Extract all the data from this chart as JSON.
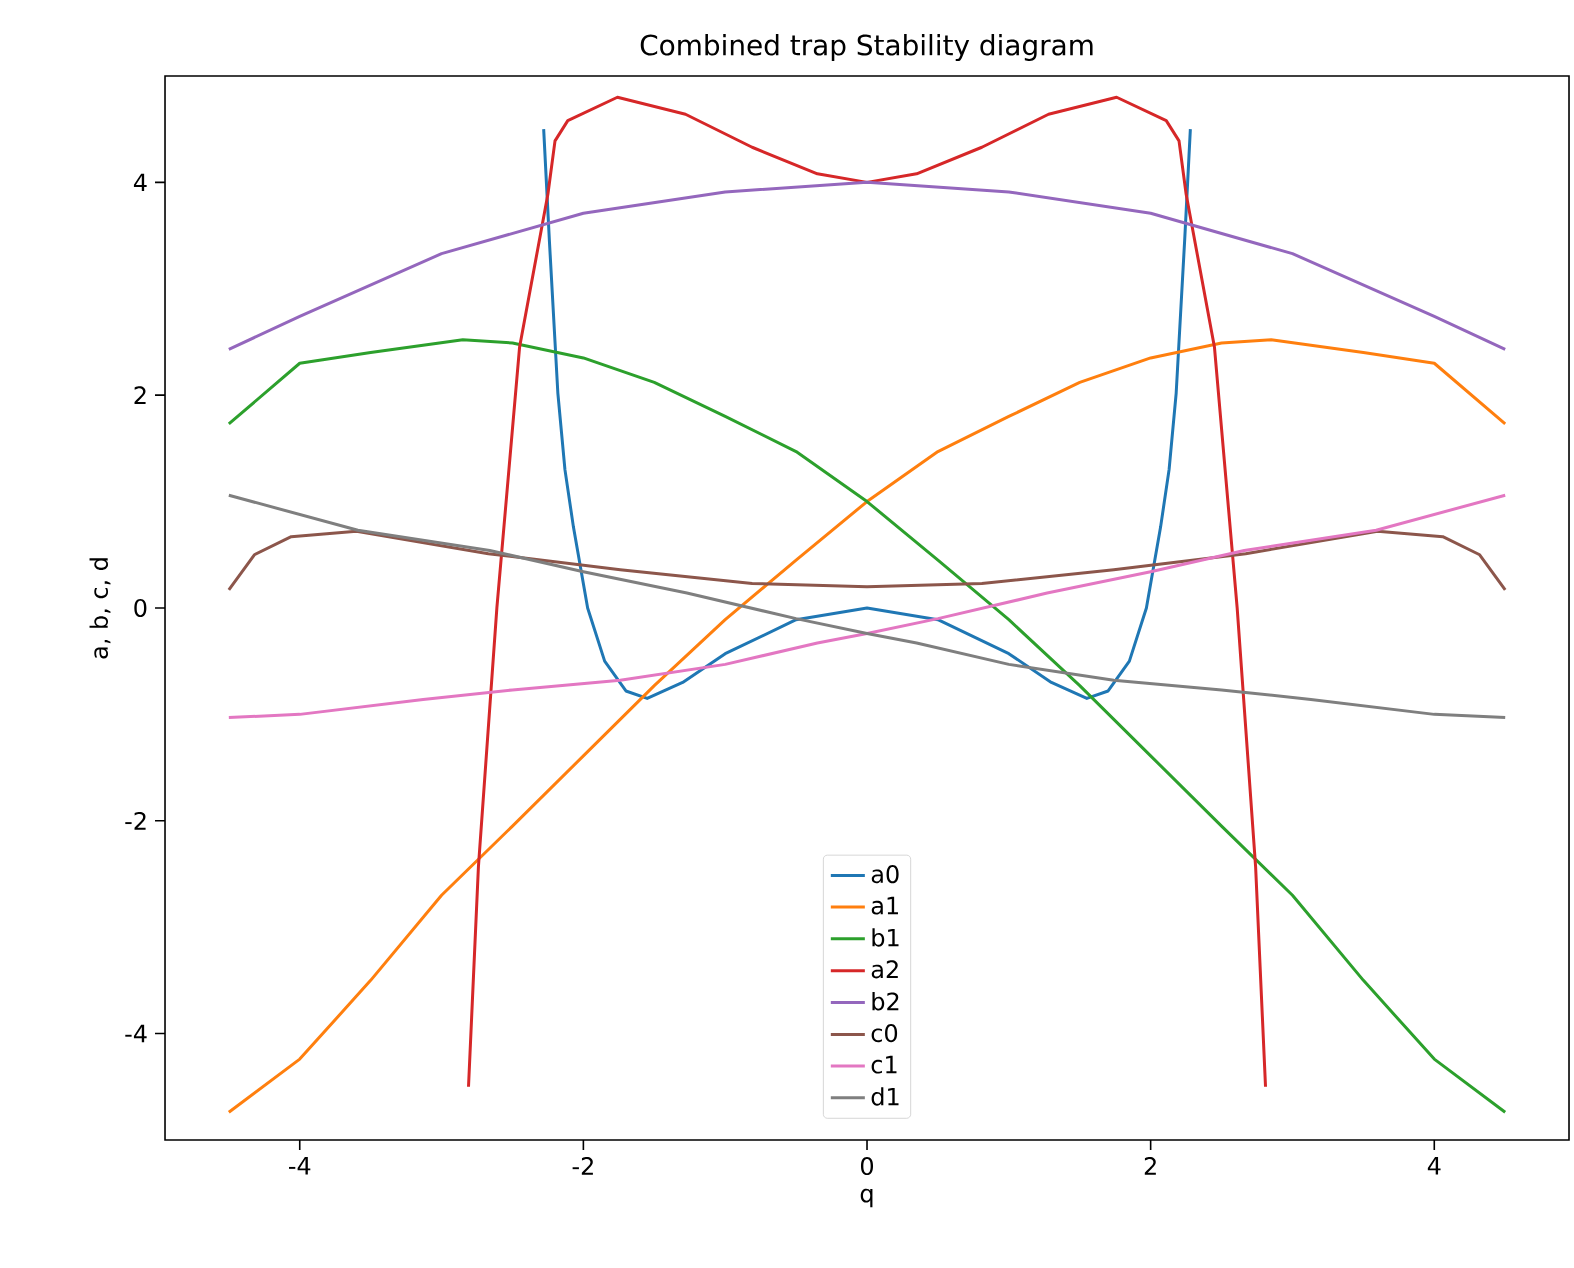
{
  "chart_data": {
    "type": "line",
    "title": "Combined trap Stability diagram",
    "xlabel": "q",
    "ylabel": "a, b, c, d",
    "xlim": [
      -4.95,
      4.95
    ],
    "ylim": [
      -5,
      5
    ],
    "xticks": [
      -4,
      -2,
      0,
      2,
      4
    ],
    "yticks": [
      -4,
      -2,
      0,
      2,
      4
    ],
    "legend": "bottom",
    "series": [
      {
        "name": "a0",
        "color": "#1f77b4",
        "x": [
          -2.28,
          -2.24,
          -2.18,
          -2.13,
          -2.07,
          -1.97,
          -1.85,
          -1.7,
          -1.55,
          -1.3,
          -1,
          -0.5,
          0,
          0.5,
          1,
          1.3,
          1.55,
          1.7,
          1.85,
          1.97,
          2.07,
          2.13,
          2.18,
          2.24,
          2.28
        ],
        "values": [
          4.5,
          3.46,
          2.02,
          1.3,
          0.76,
          0,
          -0.5,
          -0.78,
          -0.85,
          -0.7,
          -0.43,
          -0.11,
          0,
          -0.11,
          -0.43,
          -0.7,
          -0.85,
          -0.78,
          -0.5,
          0,
          0.76,
          1.3,
          2.02,
          3.46,
          4.5
        ]
      },
      {
        "name": "a1",
        "color": "#ff7f0e",
        "x": [
          -4.5,
          -4,
          -3.5,
          -3,
          -2.5,
          -2,
          -1.5,
          -1,
          -0.5,
          0,
          0.5,
          1,
          1.5,
          2,
          2.5,
          2.85,
          3.5,
          4,
          4.5
        ],
        "values": [
          -4.74,
          -4.24,
          -3.5,
          -2.7,
          -2.05,
          -1.39,
          -0.73,
          -0.11,
          0.45,
          1,
          1.47,
          1.8,
          2.12,
          2.35,
          2.49,
          2.52,
          2.4,
          2.3,
          1.73
        ]
      },
      {
        "name": "b1",
        "color": "#2ca02c",
        "x": [
          -4.5,
          -4,
          -3.5,
          -2.85,
          -2.5,
          -2,
          -1.5,
          -1,
          -0.5,
          0,
          0.5,
          1,
          1.5,
          2,
          2.5,
          3,
          3.5,
          4,
          4.5
        ],
        "values": [
          1.73,
          2.3,
          2.4,
          2.52,
          2.49,
          2.35,
          2.12,
          1.8,
          1.47,
          1,
          0.45,
          -0.11,
          -0.73,
          -1.39,
          -2.05,
          -2.7,
          -3.5,
          -4.24,
          -4.74
        ]
      },
      {
        "name": "a2",
        "color": "#d62728",
        "x": [
          -2.81,
          -2.74,
          -2.61,
          -2.45,
          -2.25,
          -2.2,
          -2.11,
          -1.76,
          -1.28,
          -0.81,
          -0.35,
          0,
          0.35,
          0.81,
          1.28,
          1.76,
          2.11,
          2.2,
          2.25,
          2.45,
          2.61,
          2.74,
          2.81
        ],
        "values": [
          -4.5,
          -2.43,
          0,
          2.45,
          3.89,
          4.39,
          4.58,
          4.8,
          4.64,
          4.33,
          4.08,
          4,
          4.08,
          4.33,
          4.64,
          4.8,
          4.58,
          4.39,
          3.89,
          2.45,
          0,
          -2.43,
          -4.5
        ]
      },
      {
        "name": "b2",
        "color": "#9467bd",
        "x": [
          -4.5,
          -4,
          -3,
          -2,
          -1,
          0,
          1,
          2,
          3,
          4,
          4.5
        ],
        "values": [
          2.43,
          2.74,
          3.33,
          3.71,
          3.91,
          4,
          3.91,
          3.71,
          3.33,
          2.74,
          2.43
        ]
      },
      {
        "name": "c0",
        "color": "#8c564b",
        "x": [
          -4.5,
          -4.32,
          -4.06,
          -3.6,
          -2.67,
          -1.74,
          -0.81,
          0,
          0.81,
          1.74,
          2.67,
          3.6,
          4.06,
          4.32,
          4.5
        ],
        "values": [
          0.17,
          0.5,
          0.67,
          0.72,
          0.51,
          0.36,
          0.23,
          0.2,
          0.23,
          0.36,
          0.51,
          0.72,
          0.67,
          0.5,
          0.17
        ]
      },
      {
        "name": "c1",
        "color": "#e377c2",
        "x": [
          -4.5,
          -4,
          -3.13,
          -2.5,
          -1.74,
          -1,
          -0.35,
          0,
          0.5,
          1.27,
          2,
          2.66,
          3.59,
          4.5
        ],
        "values": [
          -1.03,
          -1,
          -0.86,
          -0.77,
          -0.68,
          -0.53,
          -0.33,
          -0.24,
          -0.1,
          0.14,
          0.34,
          0.54,
          0.73,
          1.06
        ]
      },
      {
        "name": "d1",
        "color": "#7f7f7f",
        "x": [
          -4.5,
          -3.59,
          -2.66,
          -2,
          -1.27,
          -0.5,
          0,
          0.35,
          1,
          1.74,
          2.5,
          3.13,
          4,
          4.5
        ],
        "values": [
          1.06,
          0.73,
          0.54,
          0.34,
          0.14,
          -0.1,
          -0.24,
          -0.33,
          -0.53,
          -0.68,
          -0.77,
          -0.86,
          -1,
          -1.03
        ]
      }
    ]
  }
}
